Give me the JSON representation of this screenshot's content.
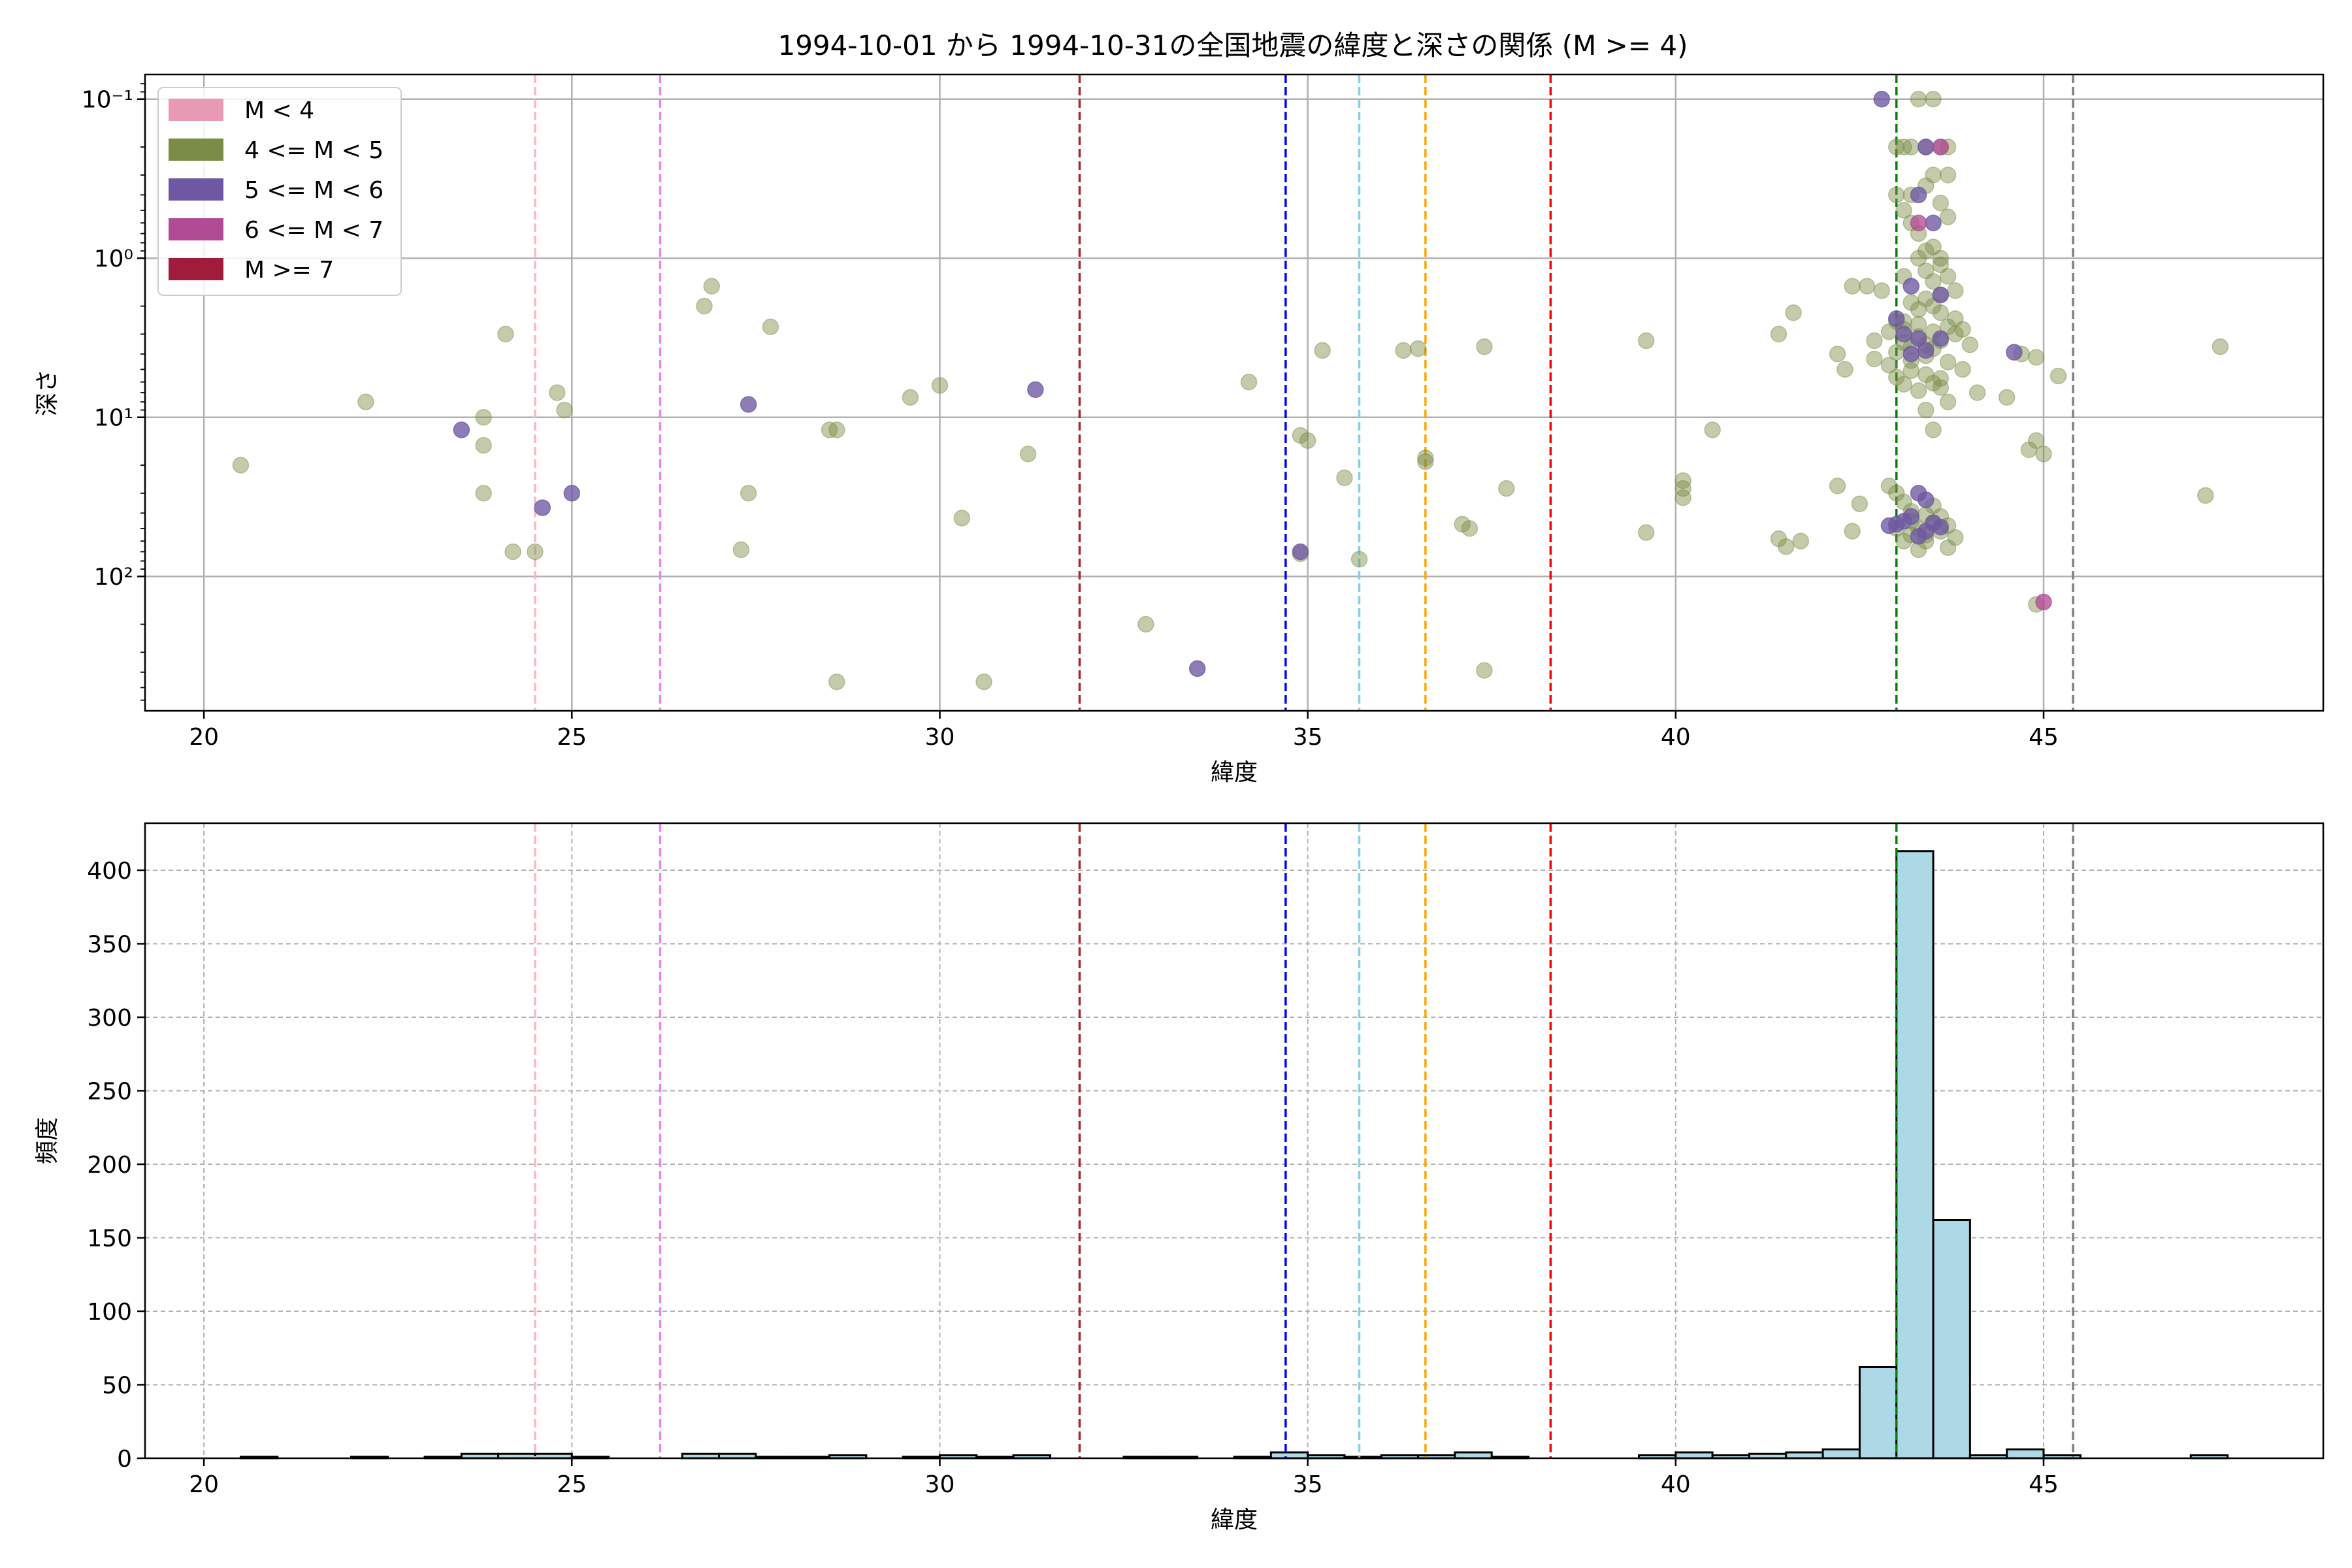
{
  "figure": {
    "title": "1994-10-01 から 1994-10-31の全国地震の緯度と深さの関係 (M >= 4)"
  },
  "chart_data": [
    {
      "type": "scatter",
      "xlabel": "緯度",
      "ylabel": "深さ",
      "xlim": [
        19.2,
        48.8
      ],
      "ylim": [
        700,
        0.07
      ],
      "yscale": "log",
      "y_inverted": true,
      "xticks": [
        20,
        25,
        30,
        35,
        40,
        45
      ],
      "yticks": [
        0.1,
        1,
        10,
        100
      ],
      "ytick_labels": [
        "10⁻¹",
        "10⁰",
        "10¹",
        "10²"
      ],
      "grid": true,
      "legend_position": "top-left",
      "legend": [
        {
          "label": "M < 4",
          "color": "#e899b4"
        },
        {
          "label": "4 <= M < 5",
          "color": "#7a8c45"
        },
        {
          "label": "5 <= M < 6",
          "color": "#6e57a3"
        },
        {
          "label": "6 <= M < 7",
          "color": "#b24b96"
        },
        {
          "label": "M >= 7",
          "color": "#a01c3d"
        }
      ],
      "vlines": [
        {
          "x": 24.5,
          "color": "#ffb6c1"
        },
        {
          "x": 26.2,
          "color": "#ee82ee"
        },
        {
          "x": 31.9,
          "color": "#a52a2a"
        },
        {
          "x": 34.7,
          "color": "#0000ff"
        },
        {
          "x": 35.7,
          "color": "#87ceeb"
        },
        {
          "x": 36.6,
          "color": "#ffa500"
        },
        {
          "x": 38.3,
          "color": "#ff0000"
        },
        {
          "x": 43.0,
          "color": "#008000"
        },
        {
          "x": 45.4,
          "color": "#808080"
        }
      ],
      "series": [
        {
          "name": "4 <= M < 5",
          "points": [
            [
              20.5,
              20
            ],
            [
              22.2,
              8
            ],
            [
              24.1,
              3
            ],
            [
              24.8,
              7
            ],
            [
              24.9,
              9
            ],
            [
              23.8,
              10
            ],
            [
              23.8,
              15
            ],
            [
              23.8,
              30
            ],
            [
              24.2,
              70
            ],
            [
              24.5,
              70
            ],
            [
              26.8,
              2
            ],
            [
              26.9,
              1.5
            ],
            [
              27.7,
              2.7
            ],
            [
              27.4,
              30
            ],
            [
              27.3,
              68
            ],
            [
              28.5,
              12
            ],
            [
              28.6,
              12
            ],
            [
              28.6,
              460
            ],
            [
              29.6,
              7.5
            ],
            [
              30.0,
              6.3
            ],
            [
              30.3,
              43
            ],
            [
              30.6,
              460
            ],
            [
              31.2,
              17
            ],
            [
              32.8,
              200
            ],
            [
              34.2,
              6
            ],
            [
              34.9,
              72
            ],
            [
              34.9,
              13
            ],
            [
              35.0,
              14
            ],
            [
              35.2,
              3.8
            ],
            [
              35.5,
              24
            ],
            [
              35.7,
              78
            ],
            [
              36.3,
              3.8
            ],
            [
              36.5,
              3.7
            ],
            [
              36.6,
              19
            ],
            [
              36.6,
              18
            ],
            [
              37.1,
              47
            ],
            [
              37.2,
              50
            ],
            [
              37.4,
              3.6
            ],
            [
              37.4,
              390
            ],
            [
              37.7,
              28
            ],
            [
              39.6,
              3.3
            ],
            [
              39.6,
              53
            ],
            [
              40.1,
              25
            ],
            [
              40.1,
              28
            ],
            [
              40.1,
              32
            ],
            [
              40.5,
              12
            ],
            [
              41.4,
              58
            ],
            [
              41.5,
              65
            ],
            [
              41.7,
              60
            ],
            [
              41.4,
              3
            ],
            [
              41.6,
              2.2
            ],
            [
              42.2,
              27
            ],
            [
              42.3,
              5
            ],
            [
              42.2,
              4
            ],
            [
              42.4,
              52
            ],
            [
              42.4,
              1.5
            ],
            [
              42.5,
              35
            ],
            [
              42.6,
              1.5
            ],
            [
              42.7,
              3.3
            ],
            [
              42.7,
              4.3
            ],
            [
              42.8,
              1.6
            ],
            [
              42.9,
              2.9
            ],
            [
              42.9,
              4.7
            ],
            [
              43.0,
              2.5
            ],
            [
              43.0,
              3.9
            ],
            [
              43.1,
              3.4
            ],
            [
              43.1,
              2.8
            ],
            [
              43.2,
              3.6
            ],
            [
              43.2,
              4.4
            ],
            [
              43.3,
              3.1
            ],
            [
              43.3,
              2.6
            ],
            [
              43.4,
              3.5
            ],
            [
              43.4,
              4.1
            ],
            [
              43.5,
              2.9
            ],
            [
              43.5,
              3.7
            ],
            [
              43.6,
              2.2
            ],
            [
              43.6,
              3.3
            ],
            [
              43.7,
              2.7
            ],
            [
              43.7,
              4.5
            ],
            [
              43.8,
              3.0
            ],
            [
              43.0,
              5.6
            ],
            [
              43.1,
              6.2
            ],
            [
              43.2,
              5.1
            ],
            [
              43.3,
              6.8
            ],
            [
              43.4,
              5.4
            ],
            [
              43.5,
              6.1
            ],
            [
              43.6,
              5.7
            ],
            [
              43.2,
              1.9
            ],
            [
              43.3,
              2.1
            ],
            [
              43.4,
              1.8
            ],
            [
              43.5,
              2.0
            ],
            [
              43.6,
              1.7
            ],
            [
              43.1,
              1.3
            ],
            [
              43.4,
              1.2
            ],
            [
              43.5,
              1.4
            ],
            [
              43.6,
              1.1
            ],
            [
              43.3,
              1.0
            ],
            [
              43.4,
              0.9
            ],
            [
              43.5,
              0.85
            ],
            [
              43.6,
              1.0
            ],
            [
              43.1,
              0.5
            ],
            [
              43.2,
              0.6
            ],
            [
              43.3,
              0.7
            ],
            [
              43.6,
              0.45
            ],
            [
              43.7,
              0.55
            ],
            [
              43.4,
              0.35
            ],
            [
              43.5,
              0.3
            ],
            [
              43.7,
              0.3
            ],
            [
              43.0,
              0.2
            ],
            [
              43.1,
              0.2
            ],
            [
              43.2,
              0.2
            ],
            [
              43.4,
              0.2
            ],
            [
              43.6,
              0.2
            ],
            [
              43.7,
              0.2
            ],
            [
              43.3,
              0.1
            ],
            [
              43.5,
              0.1
            ],
            [
              43.0,
              0.4
            ],
            [
              43.2,
              0.4
            ],
            [
              43.1,
              2.5
            ],
            [
              43.7,
              1.3
            ],
            [
              43.8,
              1.6
            ],
            [
              43.8,
              2.4
            ],
            [
              43.9,
              2.8
            ],
            [
              43.9,
              5.0
            ],
            [
              44.0,
              3.5
            ],
            [
              44.1,
              7.0
            ],
            [
              43.7,
              8.0
            ],
            [
              43.4,
              9.0
            ],
            [
              43.5,
              12
            ],
            [
              43.6,
              6.5
            ],
            [
              42.9,
              27
            ],
            [
              43.0,
              30
            ],
            [
              43.1,
              34
            ],
            [
              43.2,
              39
            ],
            [
              43.2,
              45
            ],
            [
              43.3,
              50
            ],
            [
              43.4,
              55
            ],
            [
              43.4,
              60
            ],
            [
              43.5,
              46
            ],
            [
              43.5,
              36
            ],
            [
              43.6,
              42
            ],
            [
              43.6,
              52
            ],
            [
              43.7,
              48
            ],
            [
              43.7,
              66
            ],
            [
              43.3,
              68
            ],
            [
              43.1,
              60
            ],
            [
              43.0,
              50
            ],
            [
              43.2,
              55
            ],
            [
              43.4,
              41
            ],
            [
              43.8,
              57
            ],
            [
              44.5,
              7.5
            ],
            [
              44.7,
              4.0
            ],
            [
              44.8,
              16
            ],
            [
              44.9,
              4.2
            ],
            [
              44.9,
              14
            ],
            [
              45.0,
              17
            ],
            [
              45.2,
              5.5
            ],
            [
              44.9,
              150
            ],
            [
              47.2,
              31
            ],
            [
              47.4,
              3.6
            ]
          ]
        },
        {
          "name": "5 <= M < 6",
          "points": [
            [
              23.5,
              12
            ],
            [
              24.6,
              37
            ],
            [
              25.0,
              30
            ],
            [
              27.4,
              8.3
            ],
            [
              31.3,
              6.7
            ],
            [
              33.5,
              380
            ],
            [
              34.9,
              70
            ],
            [
              42.8,
              0.1
            ],
            [
              43.0,
              2.4
            ],
            [
              43.1,
              3.0
            ],
            [
              43.2,
              1.5
            ],
            [
              43.3,
              0.4
            ],
            [
              43.4,
              0.2
            ],
            [
              43.5,
              0.6
            ],
            [
              43.6,
              1.7
            ],
            [
              43.2,
              4.0
            ],
            [
              43.3,
              3.2
            ],
            [
              43.4,
              3.8
            ],
            [
              43.6,
              3.2
            ],
            [
              42.9,
              48
            ],
            [
              43.0,
              47
            ],
            [
              43.1,
              45
            ],
            [
              43.2,
              42
            ],
            [
              43.3,
              30
            ],
            [
              43.4,
              33
            ],
            [
              43.5,
              46
            ],
            [
              43.6,
              49
            ],
            [
              43.3,
              56
            ],
            [
              43.4,
              52
            ],
            [
              44.6,
              3.9
            ]
          ]
        },
        {
          "name": "6 <= M < 7",
          "points": [
            [
              43.6,
              0.2
            ],
            [
              43.3,
              0.6
            ],
            [
              45.0,
              145
            ]
          ]
        }
      ]
    },
    {
      "type": "bar",
      "xlabel": "緯度",
      "ylabel": "頻度",
      "xlim": [
        19.2,
        48.8
      ],
      "ylim": [
        0,
        432
      ],
      "xticks": [
        20,
        25,
        30,
        35,
        40,
        45
      ],
      "yticks": [
        0,
        50,
        100,
        150,
        200,
        250,
        300,
        350,
        400
      ],
      "grid": true,
      "bar_color": "#add8e6",
      "bin_width": 0.5,
      "bins": [
        [
          20.5,
          1
        ],
        [
          22.0,
          1
        ],
        [
          23.0,
          1
        ],
        [
          23.5,
          3
        ],
        [
          24.0,
          3
        ],
        [
          24.5,
          3
        ],
        [
          25.0,
          1
        ],
        [
          26.5,
          3
        ],
        [
          27.0,
          3
        ],
        [
          27.5,
          1
        ],
        [
          28.0,
          1
        ],
        [
          28.5,
          2
        ],
        [
          29.5,
          1
        ],
        [
          30.0,
          2
        ],
        [
          30.5,
          1
        ],
        [
          31.0,
          2
        ],
        [
          32.5,
          1
        ],
        [
          33.0,
          1
        ],
        [
          34.0,
          1
        ],
        [
          34.5,
          4
        ],
        [
          35.0,
          2
        ],
        [
          35.5,
          1
        ],
        [
          36.0,
          2
        ],
        [
          36.5,
          2
        ],
        [
          37.0,
          4
        ],
        [
          37.5,
          1
        ],
        [
          39.5,
          2
        ],
        [
          40.0,
          4
        ],
        [
          40.5,
          2
        ],
        [
          41.0,
          3
        ],
        [
          41.5,
          4
        ],
        [
          42.0,
          6
        ],
        [
          42.5,
          62
        ],
        [
          43.0,
          413
        ],
        [
          43.5,
          162
        ],
        [
          44.0,
          2
        ],
        [
          44.5,
          6
        ],
        [
          45.0,
          2
        ],
        [
          47.0,
          2
        ]
      ],
      "vlines": [
        {
          "x": 24.5,
          "color": "#ffb6c1"
        },
        {
          "x": 26.2,
          "color": "#ee82ee"
        },
        {
          "x": 31.9,
          "color": "#a52a2a"
        },
        {
          "x": 34.7,
          "color": "#0000ff"
        },
        {
          "x": 35.7,
          "color": "#87ceeb"
        },
        {
          "x": 36.6,
          "color": "#ffa500"
        },
        {
          "x": 38.3,
          "color": "#ff0000"
        },
        {
          "x": 43.0,
          "color": "#008000"
        },
        {
          "x": 45.4,
          "color": "#808080"
        }
      ]
    }
  ]
}
